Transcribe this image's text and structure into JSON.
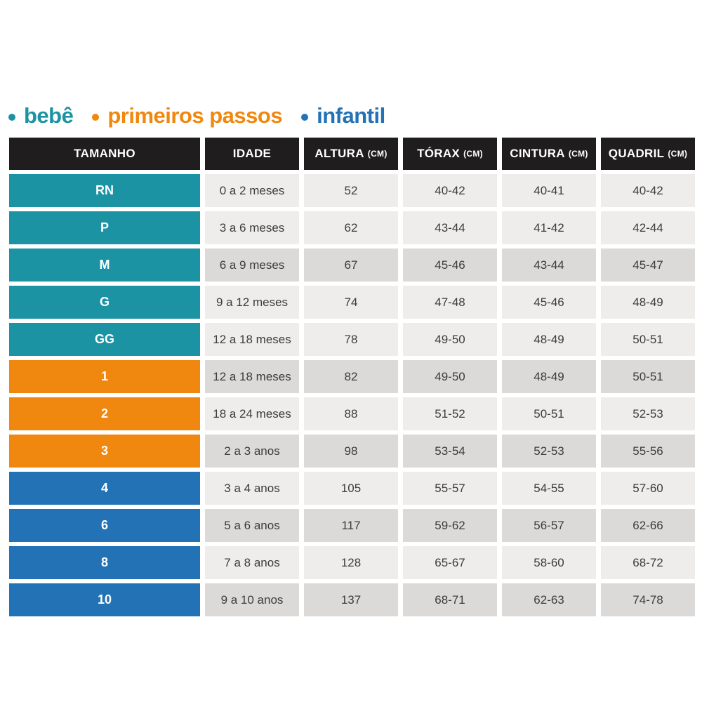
{
  "colors": {
    "bebe": "#1C93A3",
    "passos": "#F0870E",
    "infantil": "#2272B5",
    "header_bg": "#1F1D1D",
    "row_light": "#EEEDEB",
    "row_dark": "#DBDAD8",
    "cell_text": "#3D3C3A",
    "background": "#FFFFFF"
  },
  "legend": {
    "items": [
      {
        "label": "bebê",
        "color": "#1C93A3",
        "group": "bebe"
      },
      {
        "label": "primeiros passos",
        "color": "#F0870E",
        "group": "passos"
      },
      {
        "label": "infantil",
        "color": "#2272B5",
        "group": "infantil"
      }
    ]
  },
  "table": {
    "headers": [
      {
        "label": "TAMANHO",
        "unit": ""
      },
      {
        "label": "IDADE",
        "unit": ""
      },
      {
        "label": "ALTURA",
        "unit": "(CM)"
      },
      {
        "label": "TÓRAX",
        "unit": "(CM)"
      },
      {
        "label": "CINTURA",
        "unit": "(CM)"
      },
      {
        "label": "QUADRIL",
        "unit": "(CM)"
      }
    ],
    "rows": [
      {
        "size": "RN",
        "group": "bebe",
        "shade": "light",
        "idade": "0 a 2 meses",
        "altura": "52",
        "torax": "40-42",
        "cintura": "40-41",
        "quadril": "40-42"
      },
      {
        "size": "P",
        "group": "bebe",
        "shade": "light",
        "idade": "3 a 6 meses",
        "altura": "62",
        "torax": "43-44",
        "cintura": "41-42",
        "quadril": "42-44"
      },
      {
        "size": "M",
        "group": "bebe",
        "shade": "dark",
        "idade": "6 a 9 meses",
        "altura": "67",
        "torax": "45-46",
        "cintura": "43-44",
        "quadril": "45-47"
      },
      {
        "size": "G",
        "group": "bebe",
        "shade": "light",
        "idade": "9 a 12 meses",
        "altura": "74",
        "torax": "47-48",
        "cintura": "45-46",
        "quadril": "48-49"
      },
      {
        "size": "GG",
        "group": "bebe",
        "shade": "light",
        "idade": "12 a 18 meses",
        "altura": "78",
        "torax": "49-50",
        "cintura": "48-49",
        "quadril": "50-51"
      },
      {
        "size": "1",
        "group": "passos",
        "shade": "dark",
        "idade": "12 a 18 meses",
        "altura": "82",
        "torax": "49-50",
        "cintura": "48-49",
        "quadril": "50-51"
      },
      {
        "size": "2",
        "group": "passos",
        "shade": "light",
        "idade": "18 a 24 meses",
        "altura": "88",
        "torax": "51-52",
        "cintura": "50-51",
        "quadril": "52-53"
      },
      {
        "size": "3",
        "group": "passos",
        "shade": "dark",
        "idade": "2 a 3 anos",
        "altura": "98",
        "torax": "53-54",
        "cintura": "52-53",
        "quadril": "55-56"
      },
      {
        "size": "4",
        "group": "infantil",
        "shade": "light",
        "idade": "3 a 4 anos",
        "altura": "105",
        "torax": "55-57",
        "cintura": "54-55",
        "quadril": "57-60"
      },
      {
        "size": "6",
        "group": "infantil",
        "shade": "dark",
        "idade": "5 a 6 anos",
        "altura": "117",
        "torax": "59-62",
        "cintura": "56-57",
        "quadril": "62-66"
      },
      {
        "size": "8",
        "group": "infantil",
        "shade": "light",
        "idade": "7 a 8 anos",
        "altura": "128",
        "torax": "65-67",
        "cintura": "58-60",
        "quadril": "68-72"
      },
      {
        "size": "10",
        "group": "infantil",
        "shade": "dark",
        "idade": "9 a 10 anos",
        "altura": "137",
        "torax": "68-71",
        "cintura": "62-63",
        "quadril": "74-78"
      }
    ]
  },
  "chart_data": {
    "type": "table",
    "title": "",
    "legend_entries": [
      "bebê",
      "primeiros passos",
      "infantil"
    ],
    "columns": [
      "TAMANHO",
      "IDADE",
      "ALTURA (CM)",
      "TÓRAX (CM)",
      "CINTURA (CM)",
      "QUADRIL (CM)"
    ],
    "rows": [
      [
        "RN",
        "0 a 2 meses",
        "52",
        "40-42",
        "40-41",
        "40-42"
      ],
      [
        "P",
        "3 a 6 meses",
        "62",
        "43-44",
        "41-42",
        "42-44"
      ],
      [
        "M",
        "6 a 9 meses",
        "67",
        "45-46",
        "43-44",
        "45-47"
      ],
      [
        "G",
        "9 a 12 meses",
        "74",
        "47-48",
        "45-46",
        "48-49"
      ],
      [
        "GG",
        "12 a 18 meses",
        "78",
        "49-50",
        "48-49",
        "50-51"
      ],
      [
        "1",
        "12 a 18 meses",
        "82",
        "49-50",
        "48-49",
        "50-51"
      ],
      [
        "2",
        "18 a 24 meses",
        "88",
        "51-52",
        "50-51",
        "52-53"
      ],
      [
        "3",
        "2 a 3 anos",
        "98",
        "53-54",
        "52-53",
        "55-56"
      ],
      [
        "4",
        "3 a 4 anos",
        "105",
        "55-57",
        "54-55",
        "57-60"
      ],
      [
        "6",
        "5 a 6 anos",
        "117",
        "59-62",
        "56-57",
        "62-66"
      ],
      [
        "8",
        "7 a 8 anos",
        "128",
        "65-67",
        "58-60",
        "68-72"
      ],
      [
        "10",
        "9 a 10 anos",
        "137",
        "68-71",
        "62-63",
        "74-78"
      ]
    ],
    "row_groups": [
      "bebê",
      "bebê",
      "bebê",
      "bebê",
      "bebê",
      "primeiros passos",
      "primeiros passos",
      "primeiros passos",
      "infantil",
      "infantil",
      "infantil",
      "infantil"
    ]
  }
}
